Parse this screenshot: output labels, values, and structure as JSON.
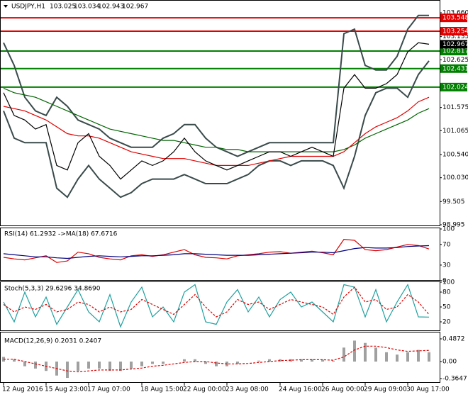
{
  "chart_data": [
    {
      "type": "line",
      "symbol": "USDJPY,H1",
      "ohlc": [
        103.025,
        103.034,
        102.943,
        102.967
      ],
      "ylim": [
        98.995,
        103.66
      ],
      "yticks": [
        {
          "value": 103.66,
          "label": "103.660"
        },
        103.135,
        102.625,
        101.575,
        101.065,
        {
          "value": 100.54,
          "label": "100.540"
        },
        {
          "value": 100.03,
          "label": "100.030"
        },
        99.505,
        98.995
      ],
      "levels": [
        {
          "value": 103.548,
          "color": "#e00000"
        },
        {
          "value": 103.254,
          "color": "#e00000"
        },
        {
          "value": 102.817,
          "color": "#008000"
        },
        {
          "value": 102.431,
          "color": "#008000"
        },
        {
          "value": 102.024,
          "color": "#008000"
        }
      ],
      "series": [
        {
          "color": "#3a4a4a",
          "values": [
            103.0,
            102.5,
            101.8,
            101.5,
            101.4,
            101.8,
            101.6,
            101.3,
            101.2,
            101.1,
            100.9,
            100.8,
            100.7,
            100.7,
            100.7,
            100.9,
            101.0,
            101.2,
            101.2,
            100.9,
            100.7,
            100.6,
            100.5,
            100.6,
            100.7,
            100.8,
            100.8,
            100.8,
            100.8,
            100.8,
            100.8,
            100.8,
            103.2,
            103.3,
            102.5,
            102.4,
            102.4,
            102.7,
            103.3,
            103.6,
            103.6
          ]
        },
        {
          "color": "#3a4a4a",
          "values": [
            101.5,
            100.9,
            100.8,
            100.8,
            100.8,
            99.8,
            99.6,
            100.0,
            100.3,
            100.0,
            99.8,
            99.6,
            99.7,
            99.9,
            100.0,
            100.0,
            100.0,
            100.1,
            100.0,
            99.9,
            99.9,
            99.9,
            100.0,
            100.1,
            100.3,
            100.4,
            100.4,
            100.3,
            100.4,
            100.4,
            100.4,
            100.3,
            99.8,
            100.5,
            101.4,
            101.9,
            102.0,
            102.0,
            101.8,
            102.3,
            102.6
          ]
        },
        {
          "color": "#006400",
          "values": [
            102.0,
            101.9,
            101.85,
            101.8,
            101.7,
            101.6,
            101.5,
            101.4,
            101.3,
            101.2,
            101.1,
            101.05,
            101.0,
            100.95,
            100.9,
            100.85,
            100.85,
            100.8,
            100.75,
            100.7,
            100.7,
            100.65,
            100.65,
            100.6,
            100.6,
            100.6,
            100.6,
            100.6,
            100.6,
            100.6,
            100.6,
            100.6,
            100.65,
            100.75,
            100.9,
            101.0,
            101.1,
            101.2,
            101.3,
            101.45,
            101.55
          ]
        },
        {
          "color": "#e00000",
          "values": [
            101.6,
            101.55,
            101.5,
            101.4,
            101.3,
            101.15,
            101.0,
            100.95,
            100.95,
            100.9,
            100.8,
            100.7,
            100.6,
            100.55,
            100.5,
            100.45,
            100.45,
            100.45,
            100.4,
            100.35,
            100.3,
            100.3,
            100.3,
            100.3,
            100.35,
            100.4,
            100.45,
            100.5,
            100.5,
            100.5,
            100.5,
            100.5,
            100.6,
            100.8,
            101.0,
            101.15,
            101.25,
            101.35,
            101.5,
            101.7,
            101.8
          ]
        },
        {
          "color": "#000000",
          "values": [
            101.9,
            101.4,
            101.3,
            101.1,
            101.2,
            100.3,
            100.2,
            100.8,
            101.0,
            100.5,
            100.3,
            100.0,
            100.2,
            100.4,
            100.3,
            100.4,
            100.6,
            100.9,
            100.6,
            100.4,
            100.3,
            100.2,
            100.3,
            100.4,
            100.5,
            100.6,
            100.6,
            100.5,
            100.6,
            100.7,
            100.6,
            100.5,
            102.0,
            102.3,
            102.0,
            102.0,
            102.1,
            102.3,
            102.8,
            103.0,
            102.967
          ]
        }
      ]
    },
    {
      "type": "line",
      "header": "RSI(14) 61.2932 ->MA(18) 67.6716",
      "ylim": [
        0,
        100
      ],
      "yticks": [
        100,
        70,
        30,
        0
      ],
      "series": [
        {
          "color": "#e00000",
          "values": [
            45,
            42,
            40,
            44,
            48,
            35,
            38,
            55,
            52,
            45,
            42,
            40,
            48,
            50,
            47,
            50,
            55,
            60,
            50,
            45,
            44,
            42,
            48,
            50,
            52,
            55,
            56,
            53,
            55,
            57,
            54,
            50,
            80,
            78,
            60,
            58,
            60,
            65,
            70,
            68,
            61.29
          ]
        },
        {
          "color": "#000080",
          "values": [
            52,
            50,
            48,
            46,
            46,
            44,
            43,
            45,
            47,
            48,
            47,
            46,
            47,
            48,
            48,
            49,
            50,
            52,
            52,
            51,
            50,
            49,
            49,
            49,
            50,
            51,
            52,
            53,
            54,
            55,
            55,
            54,
            58,
            62,
            64,
            63,
            63,
            64,
            66,
            67,
            67.67
          ]
        }
      ]
    },
    {
      "type": "line",
      "header": "Stoch(5,3,3) 29.6296 34.8690",
      "ylim": [
        0,
        100
      ],
      "yticks": [
        100,
        80,
        50,
        20
      ],
      "series": [
        {
          "color": "#20a0a0",
          "values": [
            60,
            20,
            80,
            30,
            70,
            15,
            50,
            85,
            40,
            20,
            75,
            10,
            60,
            90,
            30,
            50,
            20,
            80,
            95,
            20,
            15,
            60,
            85,
            40,
            70,
            30,
            65,
            80,
            50,
            60,
            40,
            20,
            95,
            90,
            30,
            85,
            20,
            60,
            95,
            30,
            29.6
          ]
        },
        {
          "color": "#e00000",
          "dash": true,
          "values": [
            55,
            40,
            50,
            45,
            55,
            40,
            45,
            60,
            55,
            40,
            50,
            40,
            45,
            65,
            55,
            45,
            35,
            55,
            75,
            50,
            30,
            40,
            65,
            55,
            60,
            45,
            55,
            65,
            60,
            55,
            50,
            35,
            70,
            90,
            60,
            65,
            45,
            50,
            75,
            60,
            34.9
          ]
        }
      ]
    },
    {
      "type": "bar",
      "header": "MACD(12,26,9) 0.2031 0.2407",
      "ylim": [
        -0.3647,
        0.4872
      ],
      "yticks": [
        0.4872,
        {
          "value": 0,
          "label": "0.00"
        },
        -0.3647
      ],
      "categories": [
        "12 Aug 2016",
        null,
        null,
        null,
        "15 Aug 23:00",
        null,
        null,
        null,
        "17 Aug 07:00",
        null,
        null,
        null,
        null,
        "18 Aug 15:00",
        null,
        null,
        null,
        "22 Aug 00:00",
        null,
        null,
        null,
        "23 Aug 08:00",
        null,
        null,
        null,
        null,
        "24 Aug 16:00",
        null,
        null,
        null,
        "26 Aug 00:00",
        null,
        null,
        null,
        "29 Aug 09:00",
        null,
        null,
        null,
        "30 Aug 17:00",
        null,
        null
      ],
      "series": [
        {
          "type": "bar",
          "color": "#a0a0a0",
          "values": [
            0.1,
            0.05,
            -0.1,
            -0.15,
            -0.2,
            -0.3,
            -0.35,
            -0.2,
            -0.15,
            -0.15,
            -0.2,
            -0.2,
            -0.15,
            -0.1,
            -0.05,
            -0.05,
            0,
            0.05,
            0.05,
            -0.05,
            -0.1,
            -0.1,
            -0.05,
            0,
            0.02,
            0.05,
            0.05,
            0.05,
            0.05,
            0.05,
            0.04,
            0.02,
            0.3,
            0.45,
            0.4,
            0.3,
            0.2,
            0.15,
            0.2,
            0.25,
            0.2
          ]
        },
        {
          "type": "line",
          "color": "#e00000",
          "dash": true,
          "values": [
            0.05,
            0.05,
            0,
            -0.05,
            -0.1,
            -0.15,
            -0.2,
            -0.22,
            -0.2,
            -0.18,
            -0.18,
            -0.18,
            -0.16,
            -0.14,
            -0.1,
            -0.08,
            -0.05,
            -0.02,
            0,
            0,
            -0.03,
            -0.05,
            -0.05,
            -0.04,
            -0.02,
            0,
            0.02,
            0.03,
            0.04,
            0.04,
            0.04,
            0.03,
            0.1,
            0.25,
            0.33,
            0.33,
            0.3,
            0.25,
            0.22,
            0.23,
            0.24
          ]
        }
      ]
    }
  ]
}
